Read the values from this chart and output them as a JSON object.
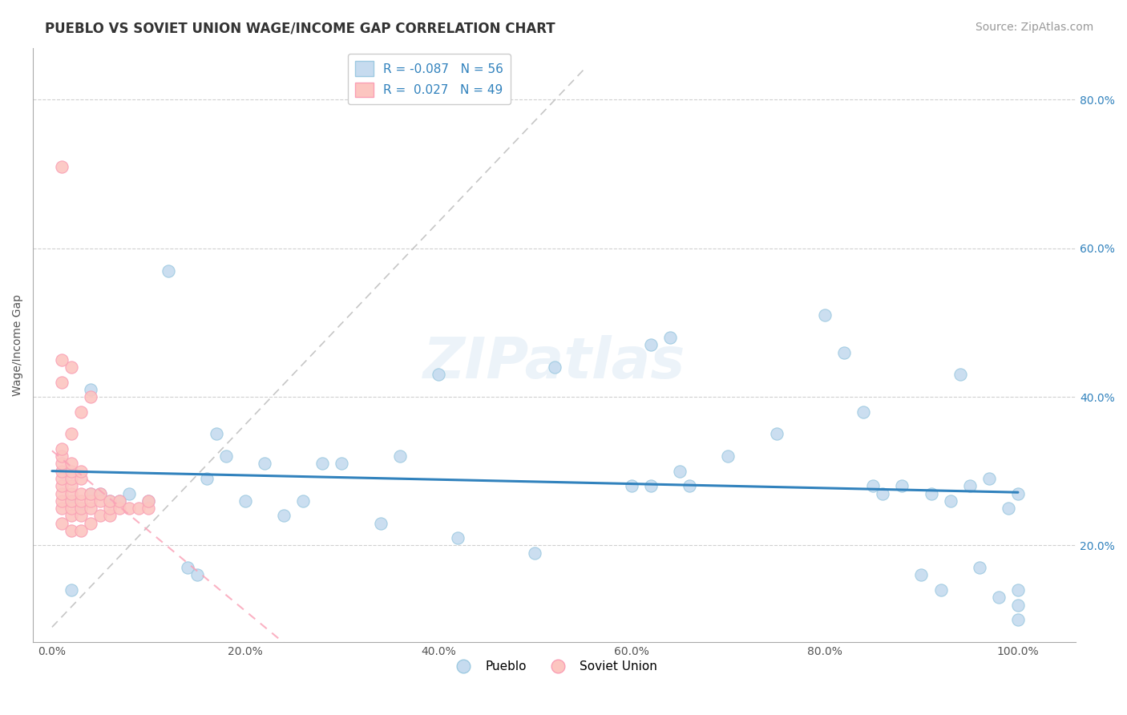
{
  "title": "PUEBLO VS SOVIET UNION WAGE/INCOME GAP CORRELATION CHART",
  "source": "Source: ZipAtlas.com",
  "ylabel": "Wage/Income Gap",
  "x_tick_labels": [
    "0.0%",
    "20.0%",
    "40.0%",
    "60.0%",
    "80.0%",
    "100.0%"
  ],
  "x_tick_vals": [
    0.0,
    0.2,
    0.4,
    0.6,
    0.8,
    1.0
  ],
  "y_tick_labels": [
    "20.0%",
    "40.0%",
    "60.0%",
    "80.0%"
  ],
  "y_tick_vals": [
    0.2,
    0.4,
    0.6,
    0.8
  ],
  "legend_R_blue": "-0.087",
  "legend_N_blue": "56",
  "legend_R_pink": "0.027",
  "legend_N_pink": "49",
  "background_color": "#ffffff",
  "blue_scatter_x": [
    0.02,
    0.03,
    0.04,
    0.05,
    0.06,
    0.07,
    0.08,
    0.1,
    0.12,
    0.14,
    0.15,
    0.16,
    0.17,
    0.18,
    0.2,
    0.22,
    0.24,
    0.26,
    0.28,
    0.3,
    0.34,
    0.36,
    0.4,
    0.5,
    0.6,
    0.62,
    0.64,
    0.66,
    0.7,
    0.75,
    0.8,
    0.82,
    0.84,
    0.85,
    0.86,
    0.88,
    0.9,
    0.91,
    0.92,
    0.93,
    0.94,
    0.95,
    0.96,
    0.97,
    0.98,
    0.99,
    1.0,
    1.0,
    1.0,
    1.0,
    0.02,
    0.04,
    0.65,
    0.42,
    0.52,
    0.62
  ],
  "blue_scatter_y": [
    0.14,
    0.25,
    0.27,
    0.27,
    0.26,
    0.26,
    0.27,
    0.26,
    0.57,
    0.17,
    0.16,
    0.29,
    0.35,
    0.32,
    0.26,
    0.31,
    0.24,
    0.26,
    0.31,
    0.31,
    0.23,
    0.32,
    0.43,
    0.19,
    0.28,
    0.28,
    0.48,
    0.28,
    0.32,
    0.35,
    0.51,
    0.46,
    0.38,
    0.28,
    0.27,
    0.28,
    0.16,
    0.27,
    0.14,
    0.26,
    0.43,
    0.28,
    0.17,
    0.29,
    0.13,
    0.25,
    0.12,
    0.27,
    0.14,
    0.1,
    0.26,
    0.41,
    0.3,
    0.21,
    0.44,
    0.47
  ],
  "pink_scatter_x": [
    0.01,
    0.01,
    0.01,
    0.01,
    0.01,
    0.01,
    0.01,
    0.01,
    0.01,
    0.02,
    0.02,
    0.02,
    0.02,
    0.02,
    0.02,
    0.02,
    0.02,
    0.02,
    0.03,
    0.03,
    0.03,
    0.03,
    0.03,
    0.03,
    0.03,
    0.04,
    0.04,
    0.04,
    0.04,
    0.05,
    0.05,
    0.05,
    0.06,
    0.06,
    0.06,
    0.07,
    0.07,
    0.08,
    0.09,
    0.1,
    0.1,
    0.01,
    0.02,
    0.03,
    0.04,
    0.01,
    0.02,
    0.01,
    0.01
  ],
  "pink_scatter_y": [
    0.23,
    0.25,
    0.26,
    0.27,
    0.28,
    0.29,
    0.3,
    0.31,
    0.32,
    0.22,
    0.24,
    0.25,
    0.26,
    0.27,
    0.28,
    0.29,
    0.3,
    0.31,
    0.22,
    0.24,
    0.25,
    0.26,
    0.27,
    0.29,
    0.3,
    0.23,
    0.25,
    0.26,
    0.27,
    0.24,
    0.26,
    0.27,
    0.24,
    0.25,
    0.26,
    0.25,
    0.26,
    0.25,
    0.25,
    0.25,
    0.26,
    0.33,
    0.35,
    0.38,
    0.4,
    0.42,
    0.44,
    0.45,
    0.71
  ],
  "title_fontsize": 12,
  "label_fontsize": 10,
  "tick_fontsize": 10,
  "legend_fontsize": 11,
  "source_fontsize": 10
}
